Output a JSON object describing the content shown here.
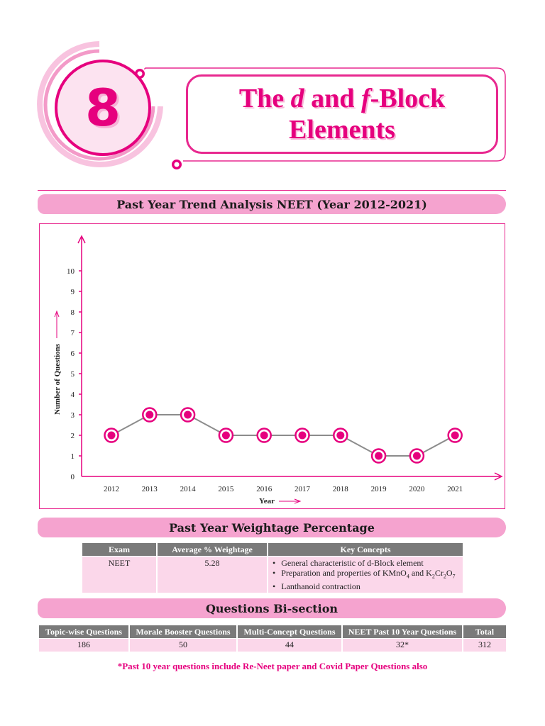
{
  "chapter": {
    "number": "8"
  },
  "title": {
    "line1_a": "The ",
    "line1_d": "d",
    "line1_b": " and ",
    "line1_f": "f",
    "line1_c": "-Block",
    "line2": "Elements"
  },
  "sections": {
    "trend": "Past Year Trend Analysis NEET (Year 2012-2021)",
    "weightage": "Past Year Weightage Percentage",
    "bisection": "Questions Bi-section"
  },
  "colors": {
    "accent": "#e6007e",
    "banner": "#f5a3cf",
    "header_cell": "#7a7a7a",
    "body_cell": "#fbd7ea",
    "line": "#8c8c8c"
  },
  "chart_data": {
    "type": "line",
    "xlabel": "Year",
    "ylabel": "Number of Questions",
    "categories": [
      "2012",
      "2013",
      "2014",
      "2015",
      "2016",
      "2017",
      "2018",
      "2019",
      "2020",
      "2021"
    ],
    "values": [
      2,
      3,
      3,
      2,
      2,
      2,
      2,
      1,
      1,
      2
    ],
    "ylim": [
      0,
      10
    ],
    "yticks": [
      "0",
      "1",
      "2",
      "3",
      "4",
      "5",
      "6",
      "7",
      "8",
      "9",
      "10"
    ],
    "grid": false
  },
  "weightage_table": {
    "headers": [
      "Exam",
      "Average % Weightage",
      "Key Concepts"
    ],
    "exam": "NEET",
    "average": "5.28",
    "concepts": {
      "c1": "General characteristic of d-Block element",
      "c2_text": "Preparation and properties of KMnO",
      "c2_sub1": "4",
      "c2_and": " and K",
      "c2_sub2": "2",
      "c2_cr": "Cr",
      "c2_sub3": "2",
      "c2_o": "O",
      "c2_sub4": "7",
      "c3": "Lanthanoid contraction"
    }
  },
  "bisection_table": {
    "headers": [
      "Topic-wise Questions",
      "Morale Booster Questions",
      "Multi-Concept Questions",
      "NEET Past 10 Year Questions",
      "Total"
    ],
    "values": [
      "186",
      "50",
      "44",
      "32*",
      "312"
    ]
  },
  "footnote": "*Past 10 year questions include Re-Neet paper and Covid Paper Questions also"
}
